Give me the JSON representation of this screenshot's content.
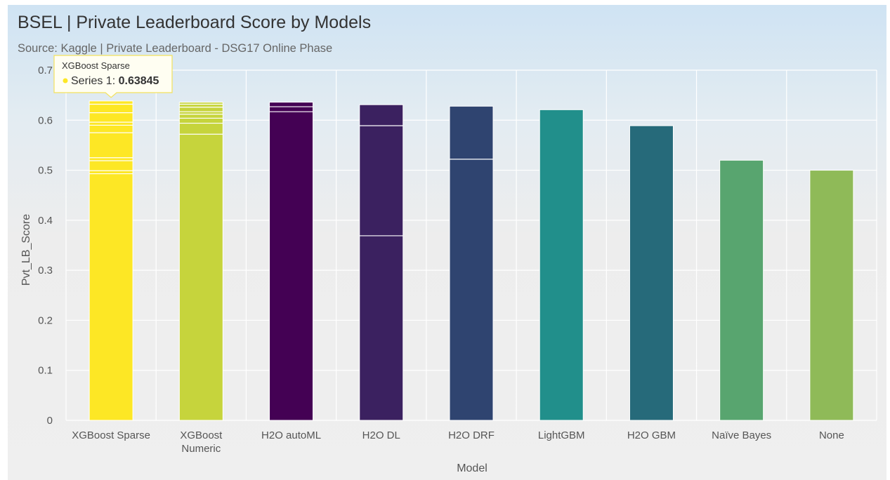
{
  "chart_data": {
    "type": "bar",
    "title": "BSEL | Private Leaderboard Score by Models",
    "subtitle": "Source: Kaggle | Private Leaderboard - DSG17 Online Phase",
    "xlabel": "Model",
    "ylabel": "Pvt_LB_Score",
    "ylim": [
      0,
      0.7
    ],
    "yticks": [
      "0",
      "0.1",
      "0.2",
      "0.3",
      "0.4",
      "0.5",
      "0.6",
      "0.7"
    ],
    "grid": true,
    "categories": [
      {
        "label": "XGBoost Sparse",
        "value": 0.63845,
        "color": "#fde725",
        "segments": [
          0.493,
          0.499,
          0.519,
          0.525,
          0.575,
          0.59,
          0.596,
          0.615,
          0.632
        ]
      },
      {
        "label": "XGBoost Numeric",
        "value": 0.636,
        "color": "#c6d43c",
        "segments": [
          0.572,
          0.594,
          0.604,
          0.612,
          0.617,
          0.626,
          0.632
        ]
      },
      {
        "label": "H2O autoML",
        "value": 0.636,
        "color": "#440154",
        "segments": [
          0.617,
          0.627
        ]
      },
      {
        "label": "H2O DL",
        "value": 0.631,
        "color": "#3b2160",
        "segments": [
          0.369,
          0.589
        ]
      },
      {
        "label": "H2O DRF",
        "value": 0.628,
        "color": "#2f4470",
        "segments": [
          0.522
        ]
      },
      {
        "label": "LightGBM",
        "value": 0.621,
        "color": "#218f8b",
        "segments": []
      },
      {
        "label": "H2O GBM",
        "value": 0.589,
        "color": "#266a7a",
        "segments": []
      },
      {
        "label": "Naïve Bayes",
        "value": 0.52,
        "color": "#58a56f",
        "segments": []
      },
      {
        "label": "None",
        "value": 0.5,
        "color": "#8fba58",
        "segments": []
      }
    ],
    "tooltip": {
      "category": "XGBoost Sparse",
      "series_label": "Series 1:",
      "value_text": "0.63845"
    }
  }
}
